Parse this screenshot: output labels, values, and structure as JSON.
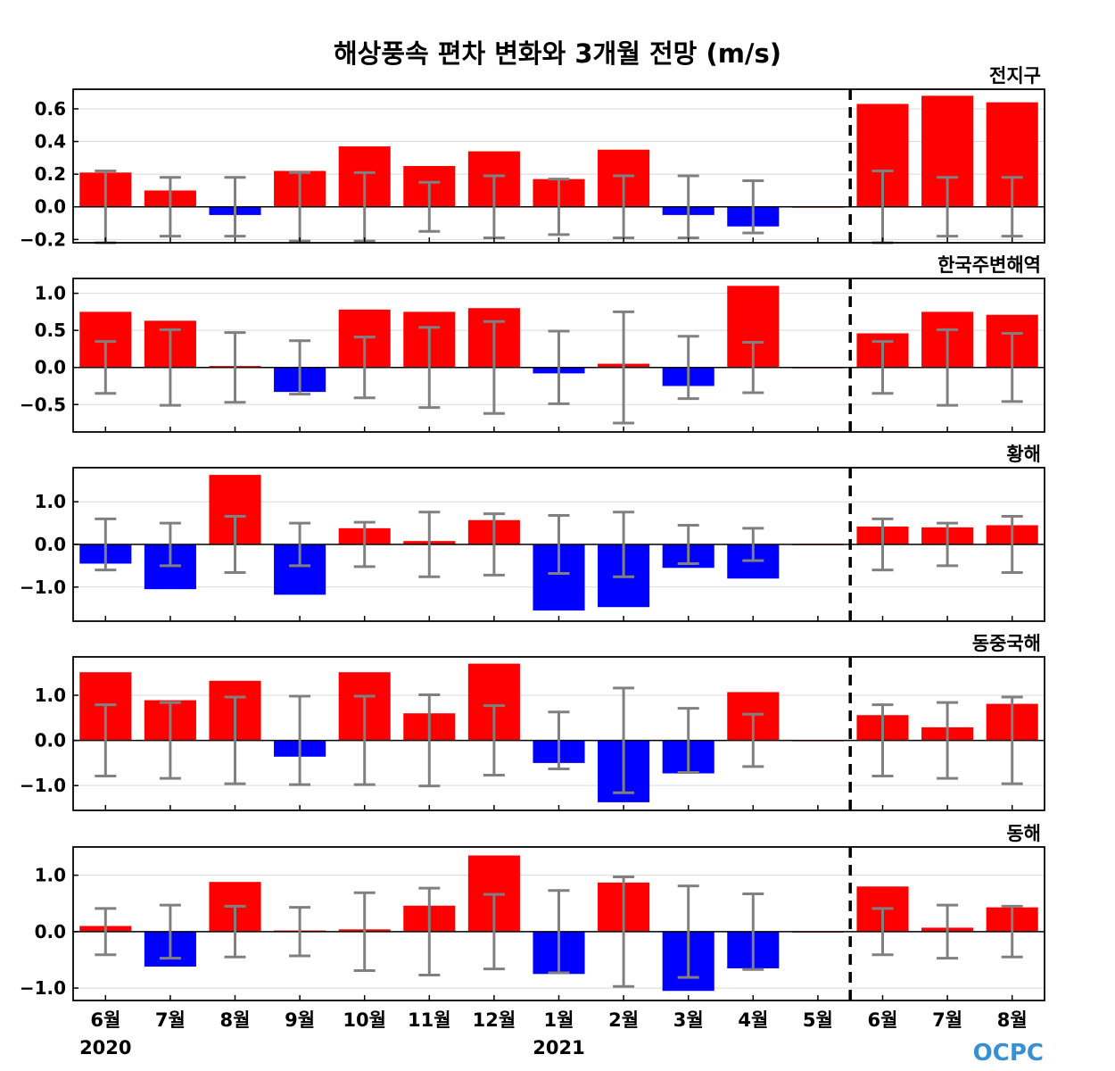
{
  "chart_data": {
    "type": "bar",
    "title": "해상풍속 편차 변화와 3개월 전망 (m/s)",
    "categories": [
      "6월",
      "7월",
      "8월",
      "9월",
      "10월",
      "11월",
      "12월",
      "1월",
      "2월",
      "3월",
      "4월",
      "5월",
      "6월",
      "7월",
      "8월"
    ],
    "year_labels": [
      "2020",
      "2021"
    ],
    "divider_after": "5월",
    "colors": {
      "positive": "#ff0000",
      "negative": "#0000ff",
      "errorbar": "#808080"
    },
    "panels": [
      {
        "name": "전지구",
        "ylim": [
          -0.22,
          0.72
        ],
        "yticks": [
          -0.2,
          0.0,
          0.2,
          0.4,
          0.6
        ],
        "ytick_labels": [
          "−0.2",
          "0.0",
          "0.2",
          "0.4",
          "0.6"
        ],
        "values": [
          0.21,
          0.1,
          -0.05,
          0.22,
          0.37,
          0.25,
          0.34,
          0.17,
          0.35,
          -0.05,
          -0.12,
          0.0,
          0.63,
          0.68,
          0.64
        ],
        "error": [
          0.22,
          0.18,
          0.18,
          0.21,
          0.21,
          0.15,
          0.19,
          0.17,
          0.19,
          0.19,
          0.16,
          0.0,
          0.22,
          0.18,
          0.18
        ]
      },
      {
        "name": "한국주변해역",
        "ylim": [
          -0.87,
          1.2
        ],
        "yticks": [
          -0.5,
          0.0,
          0.5,
          1.0
        ],
        "ytick_labels": [
          "−0.5",
          "0.0",
          "0.5",
          "1.0"
        ],
        "values": [
          0.75,
          0.63,
          0.02,
          -0.33,
          0.78,
          0.75,
          0.8,
          -0.08,
          0.05,
          -0.25,
          1.1,
          0.0,
          0.46,
          0.75,
          0.71
        ],
        "error": [
          0.35,
          0.51,
          0.47,
          0.36,
          0.41,
          0.54,
          0.62,
          0.49,
          0.75,
          0.42,
          0.34,
          0.0,
          0.35,
          0.51,
          0.46
        ]
      },
      {
        "name": "황해",
        "ylim": [
          -1.8,
          1.8
        ],
        "yticks": [
          -1.0,
          0.0,
          1.0
        ],
        "ytick_labels": [
          "−1.0",
          "0.0",
          "1.0"
        ],
        "values": [
          -0.45,
          -1.05,
          1.63,
          -1.18,
          0.38,
          0.08,
          0.57,
          -1.55,
          -1.47,
          -0.55,
          -0.8,
          0.0,
          0.42,
          0.4,
          0.45
        ],
        "error": [
          0.6,
          0.5,
          0.66,
          0.5,
          0.52,
          0.76,
          0.72,
          0.68,
          0.76,
          0.45,
          0.38,
          0.0,
          0.6,
          0.5,
          0.66
        ]
      },
      {
        "name": "동중국해",
        "ylim": [
          -1.55,
          1.85
        ],
        "yticks": [
          -1.0,
          0.0,
          1.0
        ],
        "ytick_labels": [
          "−1.0",
          "0.0",
          "1.0"
        ],
        "values": [
          1.51,
          0.89,
          1.32,
          -0.36,
          1.51,
          0.6,
          1.7,
          -0.5,
          -1.37,
          -0.73,
          1.07,
          0.0,
          0.56,
          0.29,
          0.81
        ],
        "error": [
          0.79,
          0.84,
          0.96,
          0.98,
          0.98,
          1.01,
          0.77,
          0.63,
          1.16,
          0.71,
          0.58,
          0.0,
          0.79,
          0.84,
          0.96
        ]
      },
      {
        "name": "동해",
        "ylim": [
          -1.22,
          1.5
        ],
        "yticks": [
          -1.0,
          0.0,
          1.0
        ],
        "ytick_labels": [
          "−1.0",
          "0.0",
          "1.0"
        ],
        "values": [
          0.1,
          -0.62,
          0.88,
          0.02,
          0.04,
          0.46,
          1.35,
          -0.75,
          0.87,
          -1.05,
          -0.65,
          0.0,
          0.8,
          0.07,
          0.43
        ],
        "error": [
          0.41,
          0.47,
          0.45,
          0.43,
          0.69,
          0.77,
          0.66,
          0.73,
          0.97,
          0.81,
          0.67,
          0.0,
          0.41,
          0.47,
          0.45
        ]
      }
    ]
  },
  "logo_text": "OCPC"
}
